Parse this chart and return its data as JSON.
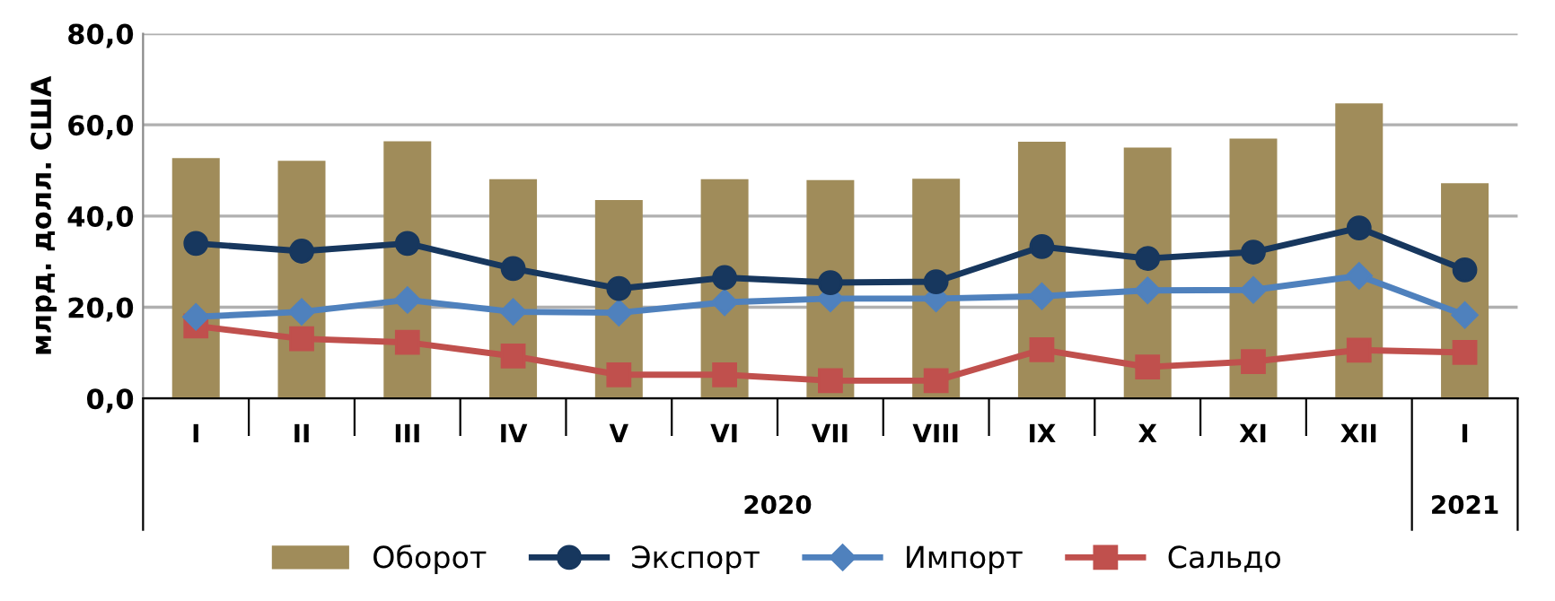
{
  "chart_data": {
    "type": "bar",
    "ylabel": "млрд. долл. США",
    "categories": [
      "I",
      "II",
      "III",
      "IV",
      "V",
      "VI",
      "VII",
      "VIII",
      "IX",
      "X",
      "XI",
      "XII",
      "I"
    ],
    "series": [
      {
        "name": "Оборот",
        "color": "#a08c5a",
        "values": [
          52.7,
          52.1,
          56.4,
          48.1,
          43.5,
          48.1,
          47.9,
          48.2,
          56.3,
          55.0,
          57.0,
          64.7,
          47.2
        ]
      },
      {
        "name": "Экспорт",
        "type": "line",
        "color": "#17375e",
        "marker": "circle",
        "values": [
          34.0,
          32.3,
          34.0,
          28.5,
          24.1,
          26.5,
          25.4,
          25.6,
          33.3,
          30.7,
          32.1,
          37.4,
          28.2
        ]
      },
      {
        "name": "Импорт",
        "type": "line",
        "color": "#4f81bd",
        "marker": "diamond",
        "values": [
          17.9,
          19.0,
          21.6,
          19.0,
          18.8,
          21.1,
          21.9,
          21.9,
          22.4,
          23.7,
          23.8,
          26.9,
          18.3
        ]
      },
      {
        "name": "Сальдо",
        "type": "line",
        "color": "#c0504d",
        "marker": "square",
        "values": [
          15.9,
          13.1,
          12.3,
          9.3,
          5.2,
          5.2,
          3.9,
          3.9,
          10.7,
          6.9,
          8.1,
          10.6,
          10.1
        ]
      }
    ],
    "ylim": [
      0,
      80
    ],
    "yticks": [
      {
        "value": 0,
        "label": "0,0"
      },
      {
        "value": 20,
        "label": "20,0"
      },
      {
        "value": 40,
        "label": "40,0"
      },
      {
        "value": 60,
        "label": "60,0"
      },
      {
        "value": 80,
        "label": "80,0"
      }
    ],
    "grid": "y",
    "legend": "bottom",
    "annotations": [
      "2020",
      "2021"
    ]
  }
}
